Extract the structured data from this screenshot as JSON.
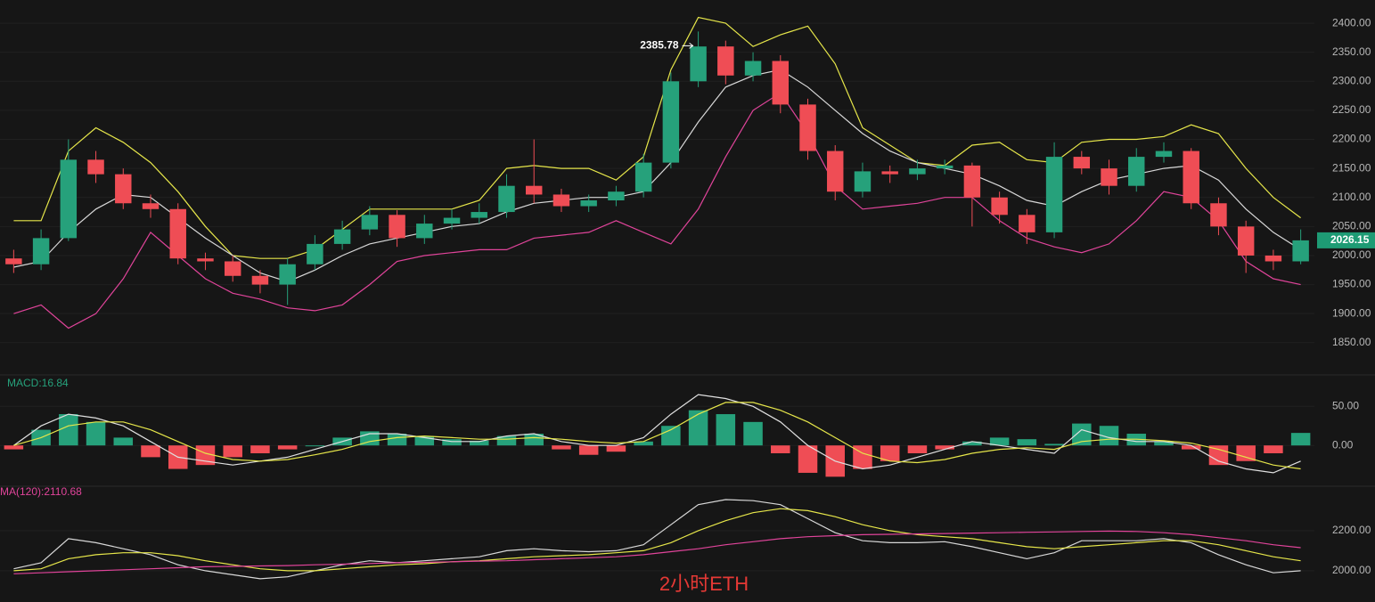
{
  "caption": "2小时ETH",
  "chart_data": [
    {
      "type": "candlestick",
      "up_color": "#26a17b",
      "down_color": "#ef4d55",
      "open": [
        1995,
        1985,
        2030,
        2165,
        2140,
        2090,
        2080,
        1995,
        1990,
        1965,
        1950,
        1985,
        2020,
        2045,
        2070,
        2030,
        2055,
        2065,
        2075,
        2120,
        2105,
        2085,
        2095,
        2110,
        2160,
        2300,
        2360,
        2310,
        2335,
        2260,
        2180,
        2110,
        2145,
        2140,
        2150,
        2155,
        2100,
        2070,
        2040,
        2170,
        2150,
        2120,
        2170,
        2180,
        2090,
        2050,
        2000,
        1990
      ],
      "high": [
        2010,
        2045,
        2200,
        2180,
        2150,
        2105,
        2090,
        2005,
        2000,
        1975,
        1995,
        2035,
        2060,
        2085,
        2078,
        2070,
        2080,
        2090,
        2140,
        2200,
        2115,
        2105,
        2120,
        2175,
        2315,
        2385.78,
        2370,
        2350,
        2345,
        2270,
        2190,
        2160,
        2155,
        2165,
        2165,
        2160,
        2110,
        2080,
        2195,
        2180,
        2165,
        2185,
        2195,
        2185,
        2100,
        2060,
        2010,
        2045
      ],
      "low": [
        1970,
        1975,
        2025,
        2125,
        2080,
        2065,
        1985,
        1975,
        1955,
        1935,
        1915,
        1975,
        2010,
        2035,
        2015,
        2020,
        2045,
        2055,
        2065,
        2090,
        2075,
        2075,
        2085,
        2100,
        2150,
        2290,
        2295,
        2300,
        2245,
        2165,
        2095,
        2100,
        2125,
        2130,
        2140,
        2050,
        2055,
        2020,
        2030,
        2140,
        2105,
        2110,
        2160,
        2080,
        2035,
        1970,
        1975,
        1985
      ],
      "close": [
        1985,
        2030,
        2165,
        2140,
        2090,
        2080,
        1995,
        1990,
        1965,
        1950,
        1985,
        2020,
        2045,
        2070,
        2030,
        2055,
        2065,
        2075,
        2120,
        2105,
        2085,
        2095,
        2110,
        2160,
        2300,
        2360,
        2310,
        2335,
        2260,
        2180,
        2110,
        2145,
        2140,
        2150,
        2155,
        2100,
        2070,
        2040,
        2170,
        2150,
        2120,
        2170,
        2180,
        2090,
        2050,
        2000,
        1990,
        2026.15
      ],
      "series": [
        {
          "color": "#e6e64a",
          "values": [
            2060,
            2060,
            2180,
            2220,
            2195,
            2160,
            2110,
            2050,
            2000,
            1995,
            1995,
            2010,
            2045,
            2080,
            2080,
            2080,
            2080,
            2095,
            2150,
            2155,
            2150,
            2150,
            2130,
            2170,
            2320,
            2410,
            2400,
            2360,
            2380,
            2395,
            2330,
            2220,
            2190,
            2160,
            2155,
            2190,
            2195,
            2165,
            2160,
            2195,
            2200,
            2200,
            2205,
            2225,
            2210,
            2150,
            2100,
            2065
          ]
        },
        {
          "color": "#d8d8d8",
          "values": [
            1980,
            1990,
            2040,
            2080,
            2105,
            2100,
            2065,
            2030,
            2000,
            1970,
            1955,
            1975,
            2000,
            2020,
            2030,
            2040,
            2050,
            2055,
            2075,
            2090,
            2095,
            2100,
            2100,
            2110,
            2160,
            2230,
            2290,
            2310,
            2320,
            2290,
            2250,
            2210,
            2180,
            2160,
            2150,
            2140,
            2120,
            2095,
            2085,
            2110,
            2130,
            2140,
            2150,
            2155,
            2130,
            2080,
            2040,
            2010
          ]
        },
        {
          "color": "#e0449a",
          "values": [
            1900,
            1915,
            1875,
            1900,
            1960,
            2040,
            2000,
            1960,
            1935,
            1925,
            1910,
            1905,
            1915,
            1950,
            1990,
            2000,
            2005,
            2010,
            2010,
            2030,
            2035,
            2040,
            2060,
            2040,
            2020,
            2080,
            2170,
            2250,
            2280,
            2210,
            2120,
            2080,
            2085,
            2090,
            2100,
            2100,
            2060,
            2030,
            2015,
            2005,
            2020,
            2060,
            2110,
            2100,
            2060,
            1990,
            1960,
            1950
          ]
        }
      ],
      "ylim": [
        1796,
        2440
      ],
      "yticks": [
        {
          "value": 1850,
          "label": "1850.00"
        },
        {
          "value": 1900,
          "label": "1900.00"
        },
        {
          "value": 1950,
          "label": "1950.00"
        },
        {
          "value": 2000,
          "label": "2000.00"
        },
        {
          "value": 2050,
          "label": "2050.00"
        },
        {
          "value": 2100,
          "label": "2100.00"
        },
        {
          "value": 2150,
          "label": "2150.00"
        },
        {
          "value": 2200,
          "label": "2200.00"
        },
        {
          "value": 2250,
          "label": "2250.00"
        },
        {
          "value": 2300,
          "label": "2300.00"
        },
        {
          "value": 2350,
          "label": "2350.00"
        },
        {
          "value": 2400,
          "label": "2400.00"
        }
      ],
      "grid": true
    },
    {
      "type": "macd",
      "label": "MACD:16.84",
      "pos_color": "#26a17b",
      "neg_color": "#ef4d55",
      "values": [
        -5,
        20,
        40,
        30,
        10,
        -15,
        -30,
        -25,
        -15,
        -10,
        -5,
        0,
        10,
        18,
        15,
        12,
        8,
        6,
        12,
        15,
        -5,
        -12,
        -8,
        5,
        25,
        45,
        40,
        30,
        -10,
        -35,
        -40,
        -30,
        -20,
        -10,
        -5,
        5,
        10,
        8,
        2,
        28,
        25,
        15,
        5,
        -5,
        -25,
        -20,
        -10,
        16
      ],
      "series": [
        {
          "color": "#e0e0e0",
          "values": [
            0,
            25,
            40,
            35,
            25,
            5,
            -15,
            -20,
            -25,
            -20,
            -15,
            -5,
            5,
            15,
            15,
            10,
            5,
            5,
            12,
            15,
            5,
            0,
            0,
            10,
            40,
            65,
            60,
            50,
            30,
            0,
            -20,
            -30,
            -25,
            -15,
            -5,
            5,
            0,
            -5,
            -10,
            20,
            10,
            5,
            5,
            0,
            -20,
            -30,
            -35,
            -20
          ]
        },
        {
          "color": "#e6e64a",
          "values": [
            0,
            10,
            25,
            30,
            30,
            20,
            5,
            -10,
            -18,
            -20,
            -18,
            -12,
            -5,
            5,
            10,
            12,
            10,
            8,
            8,
            10,
            8,
            5,
            3,
            5,
            20,
            40,
            55,
            55,
            45,
            30,
            10,
            -10,
            -20,
            -22,
            -18,
            -10,
            -5,
            -3,
            -5,
            5,
            8,
            8,
            6,
            3,
            -5,
            -15,
            -25,
            -30
          ]
        }
      ],
      "ylim": [
        -51,
        89
      ],
      "yticks": [
        {
          "value": 0,
          "label": "0.00"
        },
        {
          "value": 50,
          "label": "50.00"
        }
      ],
      "grid": true
    },
    {
      "type": "line",
      "label": "MA(120):2110.68",
      "series": [
        {
          "color": "#d8d8d8",
          "values": [
            2010,
            2040,
            2160,
            2140,
            2110,
            2080,
            2030,
            2000,
            1980,
            1960,
            1970,
            2000,
            2030,
            2050,
            2040,
            2050,
            2060,
            2070,
            2100,
            2110,
            2100,
            2095,
            2100,
            2130,
            2230,
            2330,
            2355,
            2350,
            2330,
            2260,
            2190,
            2150,
            2140,
            2140,
            2145,
            2120,
            2090,
            2060,
            2090,
            2150,
            2150,
            2150,
            2160,
            2140,
            2080,
            2030,
            1990,
            2000
          ]
        },
        {
          "color": "#e6e64a",
          "values": [
            2000,
            2010,
            2060,
            2080,
            2090,
            2090,
            2075,
            2050,
            2030,
            2010,
            2000,
            2000,
            2010,
            2020,
            2030,
            2035,
            2045,
            2050,
            2060,
            2070,
            2075,
            2080,
            2090,
            2100,
            2140,
            2200,
            2250,
            2290,
            2310,
            2300,
            2270,
            2230,
            2200,
            2180,
            2170,
            2160,
            2140,
            2120,
            2110,
            2120,
            2130,
            2140,
            2150,
            2150,
            2130,
            2100,
            2070,
            2050
          ]
        },
        {
          "color": "#e0449a",
          "values": [
            1985,
            1990,
            1995,
            2000,
            2005,
            2010,
            2015,
            2020,
            2022,
            2024,
            2026,
            2030,
            2033,
            2036,
            2040,
            2042,
            2045,
            2048,
            2050,
            2055,
            2060,
            2065,
            2070,
            2080,
            2095,
            2110,
            2130,
            2145,
            2160,
            2170,
            2175,
            2180,
            2182,
            2184,
            2186,
            2188,
            2190,
            2192,
            2194,
            2196,
            2198,
            2196,
            2190,
            2180,
            2165,
            2150,
            2130,
            2115
          ]
        }
      ],
      "ylim": [
        1844,
        2413
      ],
      "yticks": [
        {
          "value": 2000,
          "label": "2000.00"
        },
        {
          "value": 2200,
          "label": "2200.00"
        }
      ],
      "grid": true
    }
  ]
}
